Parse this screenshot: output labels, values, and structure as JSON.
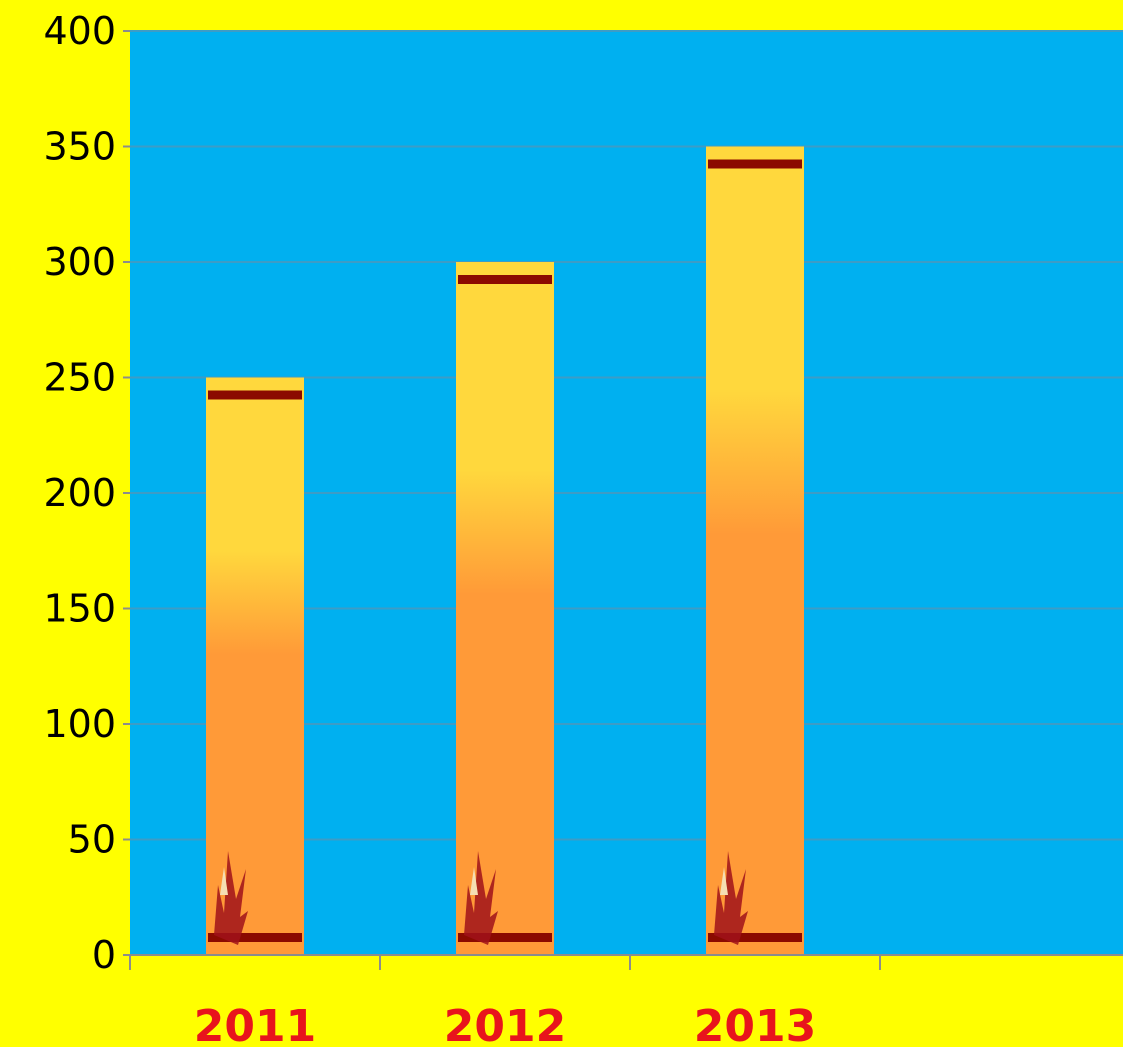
{
  "colors": {
    "page_background": "#FFFF00",
    "plot_background": "#00B0F0",
    "gridline": "#3D9CC6",
    "bar_top": "#FFD83D",
    "bar_bottom": "#FF9A38",
    "bar_band": "#8B0A00",
    "flame": "#A0121A",
    "category_label": "#E8141C"
  },
  "chart_data": {
    "type": "bar",
    "title": "",
    "xlabel": "",
    "ylabel": "",
    "categories": [
      "2011",
      "2012",
      "2013"
    ],
    "values": [
      250,
      300,
      350
    ],
    "ylim": [
      0,
      400
    ],
    "yticks": [
      0,
      50,
      100,
      150,
      200,
      250,
      300,
      350,
      400
    ],
    "grid": true,
    "legend": "none"
  }
}
